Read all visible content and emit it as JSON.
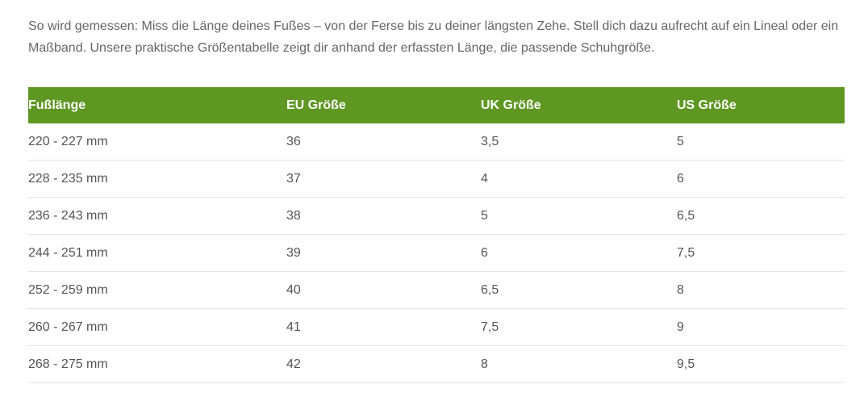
{
  "intro": {
    "text": "So wird gemessen: Miss die Länge deines Fußes – von der Ferse bis zu deiner längsten Zehe. Stell dich dazu aufrecht auf ein Lineal oder ein Maßband. Unsere praktische Größentabelle zeigt dir anhand der erfassten Länge, die passende Schuhgröße."
  },
  "table": {
    "header_color": "#5e9722",
    "headers": [
      "Fußlänge",
      "EU Größe",
      "UK Größe",
      "US Größe"
    ],
    "rows": [
      [
        "220 - 227 mm",
        "36",
        "3,5",
        "5"
      ],
      [
        "228 - 235 mm",
        "37",
        "4",
        "6"
      ],
      [
        "236 - 243 mm",
        "38",
        "5",
        "6,5"
      ],
      [
        "244 - 251 mm",
        "39",
        "6",
        "7,5"
      ],
      [
        "252 - 259 mm",
        "40",
        "6,5",
        "8"
      ],
      [
        "260 - 267 mm",
        "41",
        "7,5",
        "9"
      ],
      [
        "268 - 275 mm",
        "42",
        "8",
        "9,5"
      ]
    ]
  }
}
